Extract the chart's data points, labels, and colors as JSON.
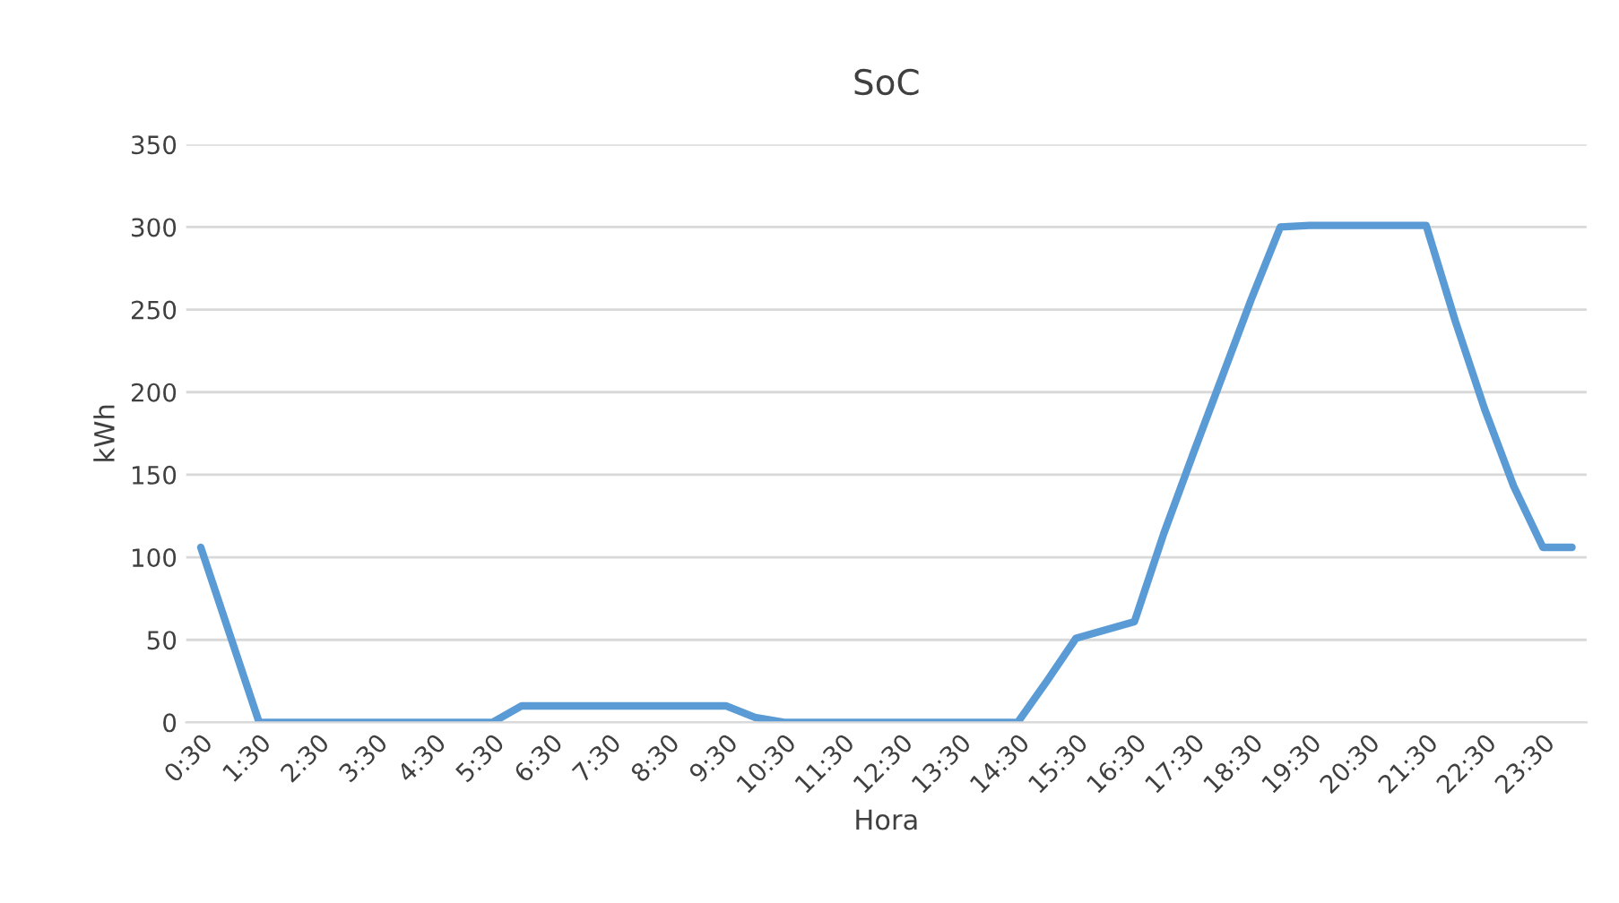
{
  "chart_data": {
    "type": "line",
    "title": "SoC",
    "xlabel": "Hora",
    "ylabel": "kWh",
    "categories": [
      "0:30",
      null,
      "1:30",
      null,
      "2:30",
      null,
      "3:30",
      null,
      "4:30",
      null,
      "5:30",
      null,
      "6:30",
      null,
      "7:30",
      null,
      "8:30",
      null,
      "9:30",
      null,
      "10:30",
      null,
      "11:30",
      null,
      "12:30",
      null,
      "13:30",
      null,
      "14:30",
      null,
      "15:30",
      null,
      "16:30",
      null,
      "17:30",
      null,
      "18:30",
      null,
      "19:30",
      null,
      "20:30",
      null,
      "21:30",
      null,
      "22:30",
      null,
      "23:30",
      null
    ],
    "series": [
      {
        "color": "#5b9bd5",
        "values": [
          106,
          53,
          0,
          0,
          0,
          0,
          0,
          0,
          0,
          0,
          0,
          10,
          10,
          10,
          10,
          10,
          10,
          10,
          10,
          3,
          0,
          0,
          0,
          0,
          0,
          0,
          0,
          0,
          0,
          25,
          51,
          56,
          61,
          114,
          162,
          209,
          256,
          300,
          301,
          301,
          301,
          301,
          301,
          243,
          190,
          143,
          106,
          106
        ]
      }
    ],
    "ylim": [
      0,
      350
    ],
    "yticks": [
      0,
      50,
      100,
      150,
      200,
      250,
      300,
      350
    ],
    "grid": "y",
    "legend": false,
    "marker": "none",
    "line_style": "solid"
  }
}
